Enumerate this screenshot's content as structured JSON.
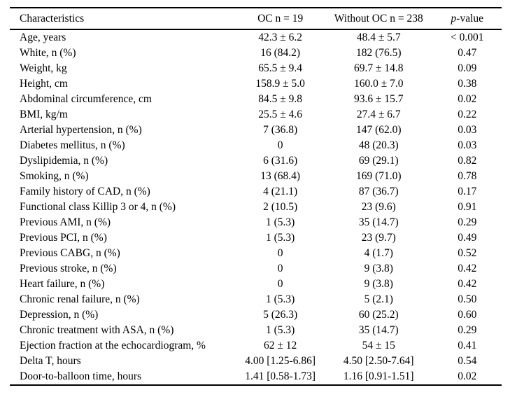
{
  "colors": {
    "background": "#ffffff",
    "text": "#000000",
    "rule": "#000000"
  },
  "table": {
    "columns": [
      {
        "text": "Characteristics",
        "italic_first_char": false
      },
      {
        "text": "OC n = 19",
        "italic_first_char": false
      },
      {
        "text": "Without OC n = 238",
        "italic_first_char": false
      },
      {
        "text": "p-value",
        "italic_first_char": true
      }
    ],
    "rows": [
      [
        "Age, years",
        "42.3 ± 6.2",
        "48.4 ± 5.7",
        "< 0.001"
      ],
      [
        "White, n (%)",
        "16 (84.2)",
        "182 (76.5)",
        "0.47"
      ],
      [
        "Weight, kg",
        "65.5 ± 9.4",
        "69.7 ± 14.8",
        "0.09"
      ],
      [
        "Height, cm",
        "158.9 ± 5.0",
        "160.0 ± 7.0",
        "0.38"
      ],
      [
        "Abdominal circumference, cm",
        "84.5 ± 9.8",
        "93.6 ± 15.7",
        "0.02"
      ],
      [
        "BMI, kg/m",
        "25.5 ± 4.6",
        "27.4 ± 6.7",
        "0.22"
      ],
      [
        "Arterial hypertension, n (%)",
        "7 (36.8)",
        "147 (62.0)",
        "0.03"
      ],
      [
        "Diabetes mellitus, n (%)",
        "0",
        "48 (20.3)",
        "0.03"
      ],
      [
        "Dyslipidemia, n (%)",
        "6 (31.6)",
        "69 (29.1)",
        "0.82"
      ],
      [
        "Smoking, n (%)",
        "13 (68.4)",
        "169 (71.0)",
        "0.78"
      ],
      [
        "Family history of CAD, n (%)",
        "4 (21.1)",
        "87 (36.7)",
        "0.17"
      ],
      [
        "Functional class Killip 3 or 4, n (%)",
        "2 (10.5)",
        "23 (9.6)",
        "0.91"
      ],
      [
        "Previous AMI, n (%)",
        "1 (5.3)",
        "35 (14.7)",
        "0.29"
      ],
      [
        "Previous PCI, n (%)",
        "1 (5.3)",
        "23 (9.7)",
        "0.49"
      ],
      [
        "Previous CABG, n (%)",
        "0",
        "4 (1.7)",
        "0.52"
      ],
      [
        "Previous stroke, n (%)",
        "0",
        "9 (3.8)",
        "0.42"
      ],
      [
        "Heart failure, n (%)",
        "0",
        "9 (3.8)",
        "0.42"
      ],
      [
        "Chronic renal failure, n (%)",
        "1 (5.3)",
        "5 (2.1)",
        "0.50"
      ],
      [
        "Depression, n (%)",
        "5 (26.3)",
        "60 (25.2)",
        "0.60"
      ],
      [
        "Chronic treatment with ASA, n (%)",
        "1 (5.3)",
        "35 (14.7)",
        "0.29"
      ],
      [
        "Ejection fraction at the echocardiogram, %",
        "62 ± 12",
        "54 ± 15",
        "0.41"
      ],
      [
        "Delta T, hours",
        "4.00 [1.25-6.86]",
        "4.50 [2.50-7.64]",
        "0.54"
      ],
      [
        "Door-to-balloon time, hours",
        "1.41 [0.58-1.73]",
        "1.16 [0.91-1.51]",
        "0.02"
      ]
    ]
  }
}
